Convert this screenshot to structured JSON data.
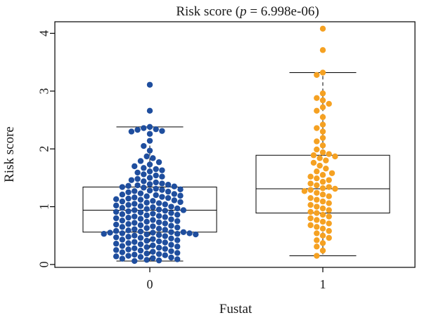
{
  "chart_data": {
    "type": "box-swarm",
    "title_prefix": "Risk score (",
    "title_p": "p",
    "title_suffix": " = 6.998e-06)",
    "xlabel": "Fustat",
    "ylabel": "Risk score",
    "ylim": [
      -0.05,
      4.2
    ],
    "yticks": [
      "0",
      "1",
      "2",
      "3",
      "4"
    ],
    "categories": [
      "0",
      "1"
    ],
    "groups": [
      {
        "name": "0",
        "color": "#1f4e9e",
        "box": {
          "whisker_low": 0.06,
          "q1": 0.56,
          "median": 0.94,
          "q3": 1.34,
          "whisker_high": 2.38
        },
        "points": [
          3.11,
          2.66,
          2.38,
          2.36,
          2.34,
          2.33,
          2.31,
          2.3,
          2.26,
          2.14,
          2.05,
          1.97,
          1.87,
          1.84,
          1.79,
          1.77,
          1.73,
          1.7,
          1.67,
          1.65,
          1.63,
          1.61,
          1.59,
          1.56,
          1.54,
          1.52,
          1.5,
          1.48,
          1.46,
          1.44,
          1.42,
          1.4,
          1.39,
          1.38,
          1.37,
          1.36,
          1.35,
          1.34,
          1.33,
          1.31,
          1.3,
          1.29,
          1.28,
          1.27,
          1.26,
          1.25,
          1.23,
          1.22,
          1.21,
          1.2,
          1.19,
          1.18,
          1.17,
          1.16,
          1.15,
          1.14,
          1.13,
          1.12,
          1.11,
          1.1,
          1.09,
          1.08,
          1.07,
          1.06,
          1.05,
          1.04,
          1.03,
          1.02,
          1.01,
          1.0,
          0.99,
          0.98,
          0.97,
          0.96,
          0.95,
          0.94,
          0.94,
          0.93,
          0.92,
          0.91,
          0.9,
          0.89,
          0.88,
          0.87,
          0.86,
          0.85,
          0.84,
          0.83,
          0.82,
          0.81,
          0.8,
          0.79,
          0.78,
          0.77,
          0.76,
          0.75,
          0.74,
          0.73,
          0.72,
          0.71,
          0.7,
          0.69,
          0.68,
          0.67,
          0.66,
          0.65,
          0.64,
          0.63,
          0.62,
          0.61,
          0.6,
          0.59,
          0.58,
          0.57,
          0.56,
          0.56,
          0.55,
          0.55,
          0.54,
          0.54,
          0.53,
          0.53,
          0.52,
          0.52,
          0.51,
          0.5,
          0.49,
          0.48,
          0.47,
          0.46,
          0.45,
          0.44,
          0.43,
          0.42,
          0.41,
          0.4,
          0.39,
          0.38,
          0.37,
          0.36,
          0.35,
          0.34,
          0.33,
          0.32,
          0.31,
          0.3,
          0.29,
          0.28,
          0.27,
          0.26,
          0.25,
          0.24,
          0.23,
          0.22,
          0.21,
          0.2,
          0.19,
          0.18,
          0.17,
          0.16,
          0.15,
          0.14,
          0.13,
          0.12,
          0.11,
          0.1,
          0.09,
          0.08,
          0.07,
          0.06
        ]
      },
      {
        "name": "1",
        "color": "#f5a122",
        "box": {
          "whisker_low": 0.15,
          "q1": 0.89,
          "median": 1.31,
          "q3": 1.89,
          "whisker_high": 3.32
        },
        "points": [
          4.08,
          3.71,
          3.32,
          3.28,
          2.96,
          2.88,
          2.84,
          2.78,
          2.72,
          2.66,
          2.55,
          2.42,
          2.36,
          2.3,
          2.19,
          2.13,
          2.06,
          1.99,
          1.94,
          1.91,
          1.89,
          1.87,
          1.84,
          1.8,
          1.76,
          1.71,
          1.66,
          1.61,
          1.58,
          1.55,
          1.52,
          1.49,
          1.46,
          1.43,
          1.4,
          1.37,
          1.34,
          1.32,
          1.31,
          1.29,
          1.27,
          1.24,
          1.21,
          1.18,
          1.15,
          1.12,
          1.09,
          1.06,
          1.03,
          1.0,
          0.97,
          0.94,
          0.91,
          0.89,
          0.86,
          0.83,
          0.8,
          0.77,
          0.74,
          0.71,
          0.68,
          0.65,
          0.62,
          0.58,
          0.54,
          0.5,
          0.46,
          0.42,
          0.37,
          0.31,
          0.24,
          0.15
        ]
      }
    ]
  }
}
